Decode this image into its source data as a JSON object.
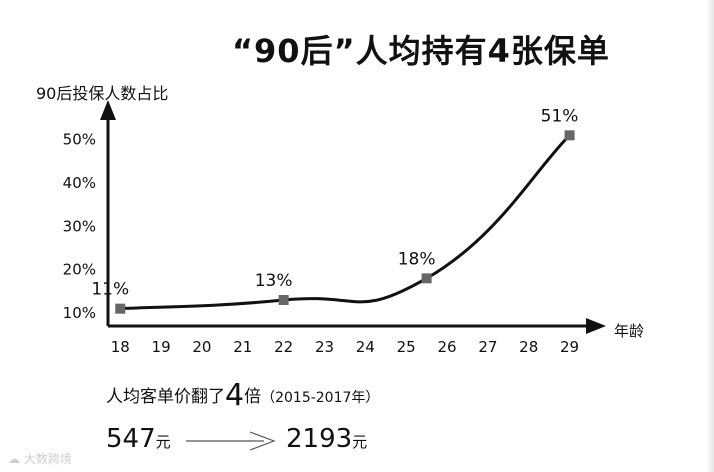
{
  "chart_data": {
    "type": "line",
    "title": "“90后”人均持有4张保单",
    "ylabel": "90后投保人数占比",
    "xlabel": "年龄",
    "x_ticks": [
      "18",
      "19",
      "20",
      "21",
      "22",
      "23",
      "24",
      "25",
      "26",
      "27",
      "28",
      "29"
    ],
    "y_ticks": [
      "10%",
      "20%",
      "30%",
      "40%",
      "50%"
    ],
    "xlim": [
      17.7,
      29.5
    ],
    "ylim": [
      7,
      55
    ],
    "points": [
      {
        "x": 18,
        "y": 11,
        "label": "11%"
      },
      {
        "x": 22,
        "y": 13,
        "label": "13%"
      },
      {
        "x": 25.5,
        "y": 18,
        "label": "18%"
      },
      {
        "x": 29,
        "y": 51,
        "label": "51%"
      }
    ],
    "color": "#111111",
    "marker_color": "#666666"
  },
  "note": {
    "prefix": "人均客单价翻了",
    "multiplier": "4",
    "suffix": "倍",
    "period": "（2015-2017年）"
  },
  "price": {
    "from": "547",
    "from_unit": "元",
    "to": "2193",
    "to_unit": "元"
  },
  "watermark": "大数跨境"
}
